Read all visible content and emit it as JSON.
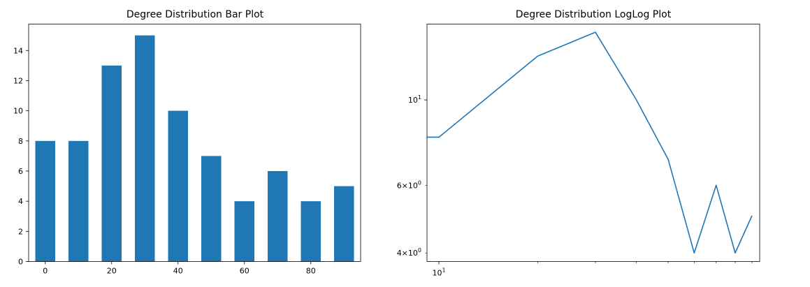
{
  "chart_data": [
    {
      "type": "bar",
      "title": "Degree Distribution Bar Plot",
      "xlabel": "",
      "ylabel": "",
      "x": [
        0,
        10,
        20,
        30,
        40,
        50,
        60,
        70,
        80,
        90
      ],
      "values": [
        8,
        8,
        13,
        15,
        10,
        7,
        4,
        6,
        4,
        5
      ],
      "bar_width": 6,
      "xlim": [
        -5,
        95
      ],
      "ylim": [
        0,
        15.75
      ],
      "xticks": [
        0,
        20,
        40,
        60,
        80
      ],
      "xtick_labels": [
        "0",
        "20",
        "40",
        "60",
        "80"
      ],
      "yticks": [
        0,
        2,
        4,
        6,
        8,
        10,
        12,
        14
      ],
      "ytick_labels": [
        "0",
        "2",
        "4",
        "6",
        "8",
        "10",
        "12",
        "14"
      ],
      "bar_color": "#1f77b4",
      "grid": false
    },
    {
      "type": "line",
      "title": "Degree Distribution LogLog Plot",
      "xscale": "log",
      "yscale": "log",
      "x": [
        9.2,
        10,
        20,
        30,
        40,
        50,
        60,
        70,
        80,
        90
      ],
      "y": [
        8,
        8,
        13,
        15,
        10,
        7,
        4,
        6,
        4,
        5
      ],
      "xlim": [
        9.2,
        95
      ],
      "ylim": [
        3.8,
        15.75
      ],
      "xticks": [
        10
      ],
      "xtick_labels": [
        {
          "base": "10",
          "exp": "1"
        }
      ],
      "x_minor_ticks": [
        20,
        30,
        40,
        50,
        60,
        70,
        80,
        90
      ],
      "yticks": [
        10
      ],
      "ytick_labels": [
        {
          "base": "10",
          "exp": "1"
        }
      ],
      "y_minor_ticks": [
        4,
        6
      ],
      "y_minor_tick_labels": [
        {
          "coef": "4",
          "base": "10",
          "exp": "0"
        },
        {
          "coef": "6",
          "base": "10",
          "exp": "0"
        }
      ],
      "line_color": "#1f77b4",
      "grid": false
    }
  ]
}
